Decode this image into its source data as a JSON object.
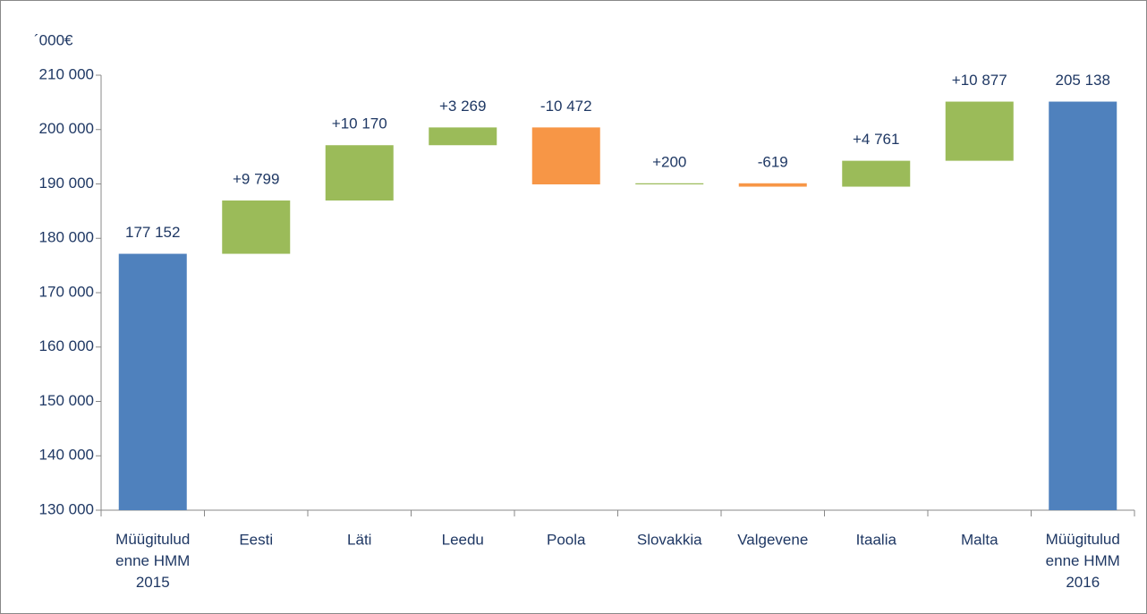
{
  "chart_data": {
    "type": "waterfall",
    "y_unit_label": "´000€",
    "categories": [
      "Müügitulud\nenne HMM\n2015",
      "Eesti",
      "Läti",
      "Leedu",
      "Poola",
      "Slovakkia",
      "Valgevene",
      "Itaalia",
      "Malta",
      "Müügitulud\nenne HMM\n2016"
    ],
    "values": [
      177152,
      9799,
      10170,
      3269,
      -10472,
      200,
      -619,
      4761,
      10877,
      205138
    ],
    "value_labels": [
      "177 152",
      "+9 799",
      "+10 170",
      "+3 269",
      "-10 472",
      "+200",
      "-619",
      "+4 761",
      "+10 877",
      "205 138"
    ],
    "is_total": [
      true,
      false,
      false,
      false,
      false,
      false,
      false,
      false,
      false,
      true
    ],
    "colors": {
      "total": "#4f81bd",
      "increase": "#9bbb59",
      "decrease": "#f79646"
    },
    "ylim": [
      130000,
      210000
    ],
    "yticks": [
      {
        "value": 130000,
        "label": "130 000"
      },
      {
        "value": 140000,
        "label": "140 000"
      },
      {
        "value": 150000,
        "label": "150 000"
      },
      {
        "value": 160000,
        "label": "160 000"
      },
      {
        "value": 170000,
        "label": "170 000"
      },
      {
        "value": 180000,
        "label": "180 000"
      },
      {
        "value": 190000,
        "label": "190 000"
      },
      {
        "value": 200000,
        "label": "200 000"
      },
      {
        "value": 210000,
        "label": "210 000"
      }
    ],
    "grid": false
  }
}
